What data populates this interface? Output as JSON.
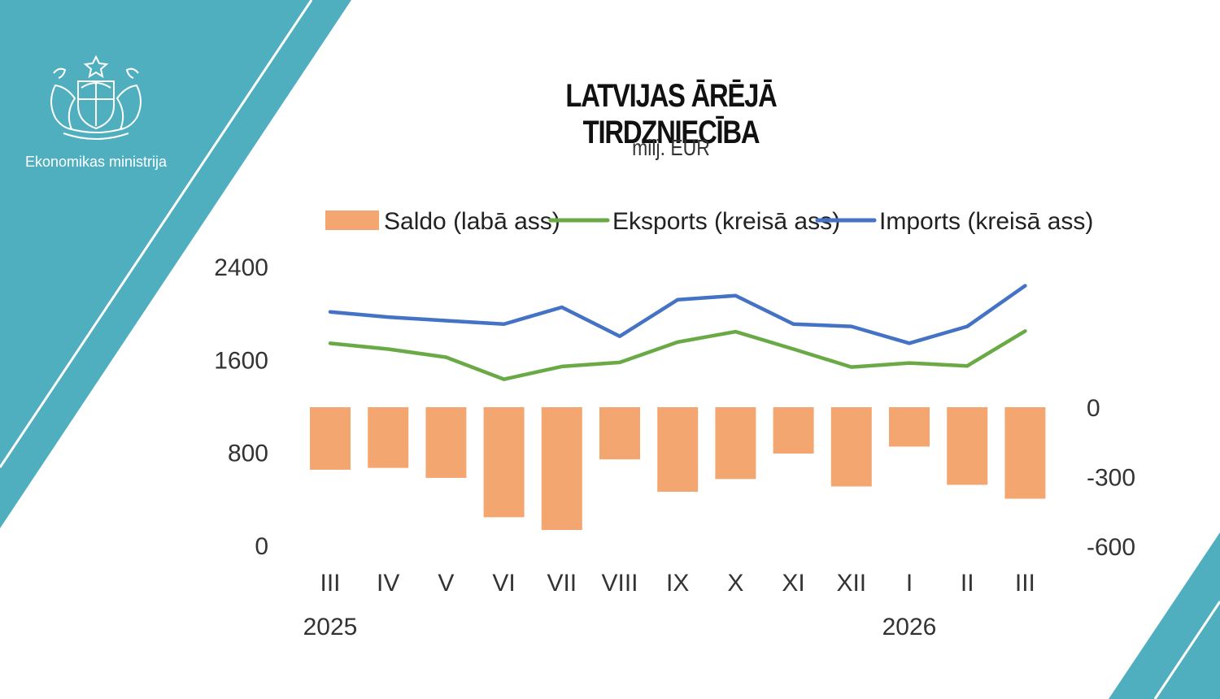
{
  "organization": {
    "name": "Ekonomikas ministrija",
    "logo_icon": "coat-of-arms-icon"
  },
  "colors": {
    "teal": "#4fafbf",
    "saldo": "#f3a66f",
    "eksports": "#6aaa46",
    "imports": "#4472c4"
  },
  "chart_data": {
    "type": "bar-line",
    "title": "LATVIJAS ĀRĒJĀ TIRDZNIECĪBA",
    "subtitle": "milj. EUR",
    "categories": [
      "III",
      "IV",
      "V",
      "VI",
      "VII",
      "VIII",
      "IX",
      "X",
      "XI",
      "XII",
      "I",
      "II",
      "III"
    ],
    "year_labels": [
      {
        "label": "2025",
        "category_index": 0
      },
      {
        "label": "2026",
        "category_index": 10
      }
    ],
    "legend": [
      "Saldo (labā ass)",
      "Eksports (kreisā ass)",
      "Imports (kreisā ass)"
    ],
    "legend_position": "top",
    "series": [
      {
        "name": "Saldo (labā ass)",
        "type": "bar",
        "axis": "right",
        "values": [
          -270,
          -262,
          -305,
          -475,
          -530,
          -225,
          -365,
          -310,
          -200,
          -342,
          -170,
          -335,
          -395
        ]
      },
      {
        "name": "Eksports (kreisā ass)",
        "type": "line",
        "axis": "left",
        "values": [
          1740,
          1690,
          1620,
          1430,
          1540,
          1575,
          1750,
          1840,
          1690,
          1535,
          1570,
          1545,
          1845
        ]
      },
      {
        "name": "Imports (kreisā ass)",
        "type": "line",
        "axis": "left",
        "values": [
          2010,
          1965,
          1935,
          1905,
          2050,
          1800,
          2115,
          2150,
          1905,
          1885,
          1740,
          1885,
          2235
        ]
      }
    ],
    "left_axis": {
      "ylim": [
        0,
        2400
      ],
      "ticks": [
        "0",
        "800",
        "1600",
        "2400"
      ]
    },
    "right_axis": {
      "ylim": [
        -600,
        0
      ],
      "ticks": [
        "0",
        "-300",
        "-600"
      ]
    },
    "grid": false
  }
}
